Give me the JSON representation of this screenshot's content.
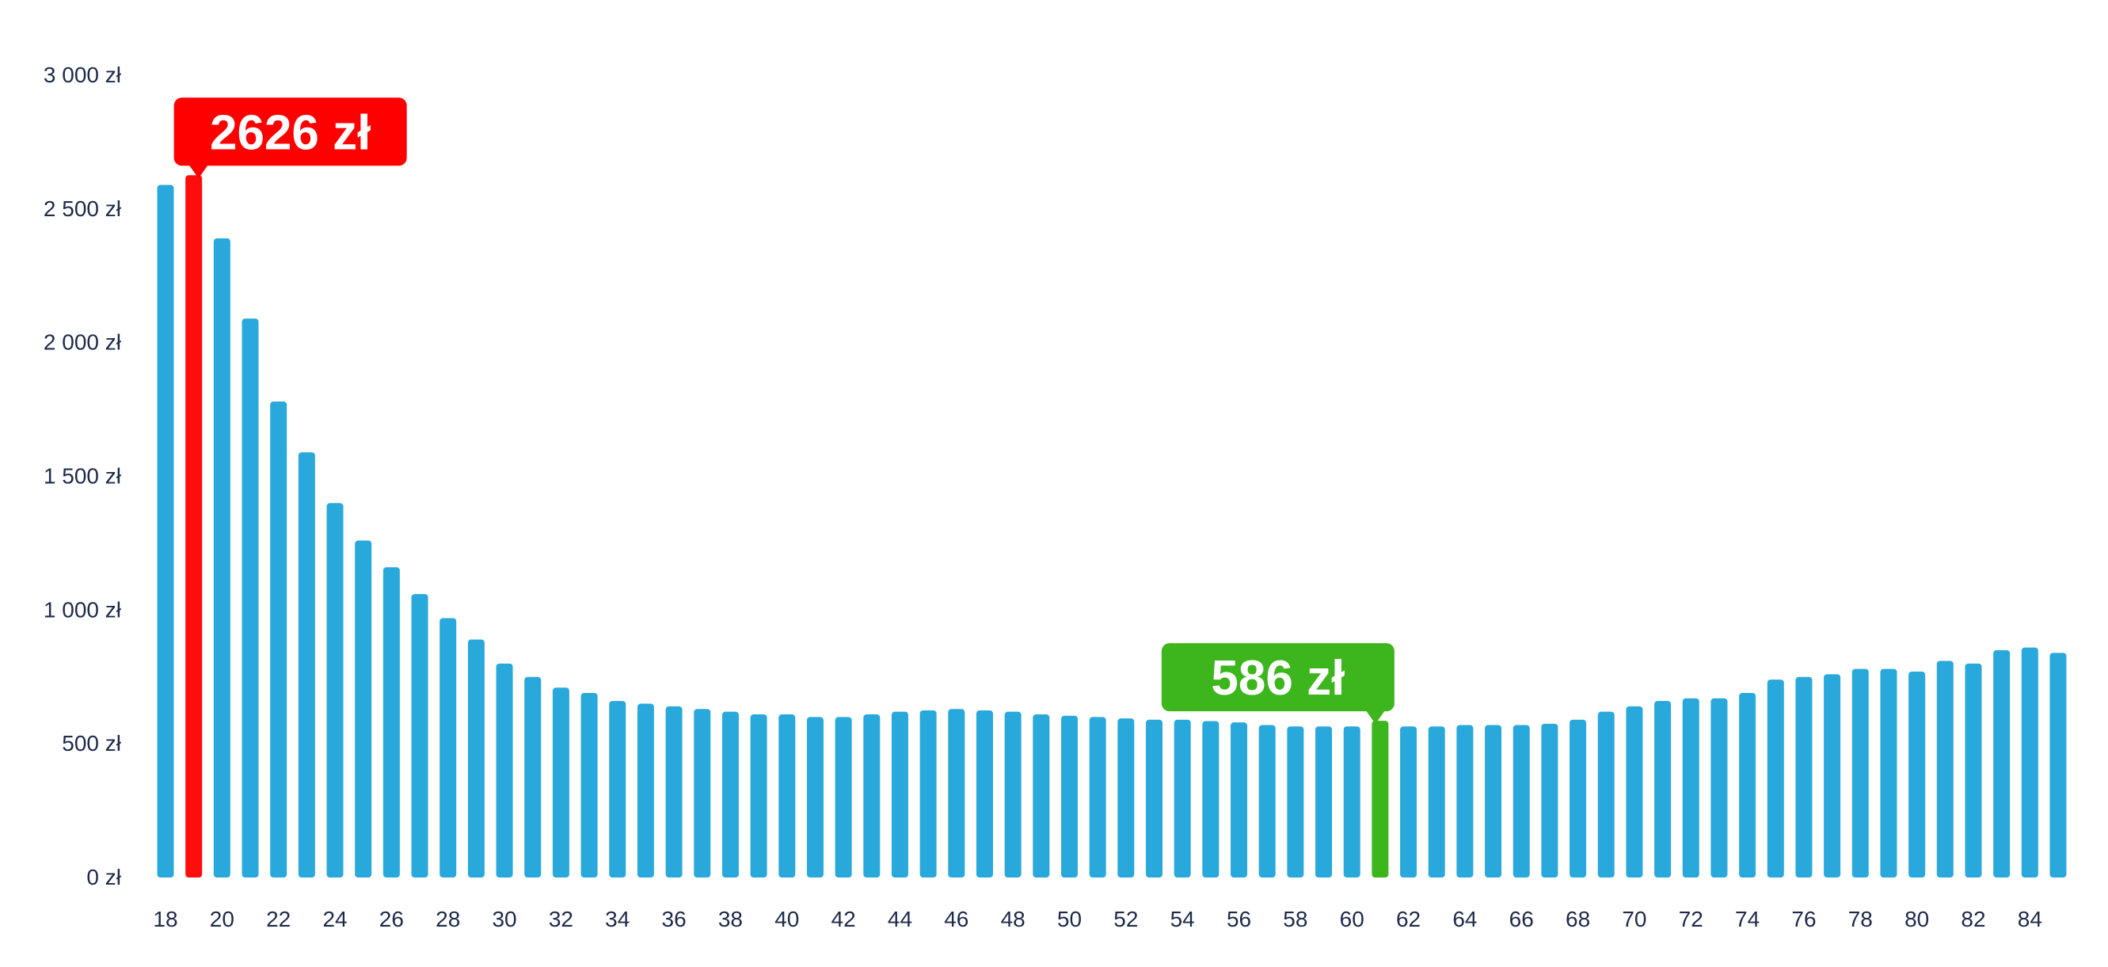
{
  "chart_data": {
    "type": "bar",
    "title": "",
    "xlabel": "",
    "ylabel": "",
    "ylim": [
      0,
      3000
    ],
    "grid": false,
    "y_ticks": [
      "0 zł",
      "500 zł",
      "1 000 zł",
      "1 500 zł",
      "2 000 zł",
      "2 500 zł",
      "3 000 zł"
    ],
    "y_tick_values": [
      0,
      500,
      1000,
      1500,
      2000,
      2500,
      3000
    ],
    "x_tick_labels": [
      "18",
      "20",
      "22",
      "24",
      "26",
      "28",
      "30",
      "32",
      "34",
      "36",
      "38",
      "40",
      "42",
      "44",
      "46",
      "48",
      "50",
      "52",
      "54",
      "56",
      "58",
      "60",
      "62",
      "64",
      "66",
      "68",
      "70",
      "72",
      "74",
      "76",
      "78",
      "80",
      "82",
      "84"
    ],
    "categories": [
      18,
      19,
      20,
      21,
      22,
      23,
      24,
      25,
      26,
      27,
      28,
      29,
      30,
      31,
      32,
      33,
      34,
      35,
      36,
      37,
      38,
      39,
      40,
      41,
      42,
      43,
      44,
      45,
      46,
      47,
      48,
      49,
      50,
      51,
      52,
      53,
      54,
      55,
      56,
      57,
      58,
      59,
      60,
      61,
      62,
      63,
      64,
      65,
      66,
      67,
      68,
      69,
      70,
      71,
      72,
      73,
      74,
      75,
      76,
      77,
      78,
      79,
      80,
      81,
      82,
      83,
      84,
      85
    ],
    "values": [
      2590,
      2626,
      2390,
      2090,
      1780,
      1590,
      1400,
      1260,
      1160,
      1060,
      970,
      890,
      800,
      750,
      710,
      690,
      660,
      650,
      640,
      630,
      620,
      610,
      610,
      600,
      600,
      610,
      620,
      625,
      630,
      625,
      620,
      610,
      605,
      600,
      595,
      590,
      590,
      585,
      580,
      570,
      565,
      565,
      565,
      586,
      565,
      565,
      570,
      570,
      570,
      575,
      590,
      620,
      640,
      660,
      670,
      670,
      690,
      740,
      750,
      760,
      780,
      780,
      770,
      810,
      800,
      850,
      860,
      840
    ],
    "bar_color": "#29a8dc",
    "highlights": [
      {
        "category": 19,
        "value": 2626,
        "label": "2626 zł",
        "color": "#ff0d0d",
        "bubble_color": "#ff0000"
      },
      {
        "category": 61,
        "value": 586,
        "label": "586 zł",
        "color": "#3db51d",
        "bubble_color": "#3db51d"
      }
    ],
    "axis_text_color": "#1e2a4a"
  }
}
